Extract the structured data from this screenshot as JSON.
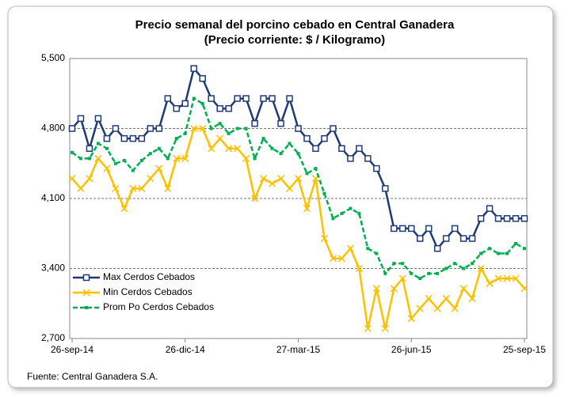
{
  "chart_data": {
    "type": "line",
    "title": "Precio semanal del porcino cebado en Central Ganadera",
    "subtitle": "(Precio corriente: $ / Kilogramo)",
    "source": "Fuente: Central Ganadera S.A.",
    "categories": [
      "26-sep-14",
      null,
      null,
      null,
      null,
      null,
      null,
      null,
      null,
      null,
      null,
      null,
      null,
      "26-dic-14",
      null,
      null,
      null,
      null,
      null,
      null,
      null,
      null,
      null,
      null,
      null,
      null,
      "27-mar-15",
      null,
      null,
      null,
      null,
      null,
      null,
      null,
      null,
      null,
      null,
      null,
      null,
      "26-jun-15",
      null,
      null,
      null,
      null,
      null,
      null,
      null,
      null,
      null,
      null,
      null,
      null,
      "25-sep-15"
    ],
    "series": [
      {
        "name": "Max Cerdos Cebados",
        "color": "#1f3a7a",
        "marker": "square",
        "dashed": false,
        "values": [
          4800,
          4900,
          4600,
          4900,
          4700,
          4800,
          4700,
          4700,
          4700,
          4800,
          4800,
          5100,
          5000,
          5050,
          5400,
          5300,
          5100,
          5000,
          5000,
          5100,
          5100,
          4850,
          5100,
          5100,
          4850,
          5100,
          4800,
          4700,
          4600,
          4700,
          4800,
          4600,
          4500,
          4600,
          4500,
          4400,
          4200,
          3800,
          3800,
          3800,
          3700,
          3800,
          3600,
          3700,
          3800,
          3700,
          3700,
          3900,
          4000,
          3900,
          3900,
          3900,
          3900
        ]
      },
      {
        "name": "Min Cerdos Cebados",
        "color": "#ffc000",
        "marker": "x",
        "dashed": false,
        "values": [
          4300,
          4200,
          4300,
          4500,
          4400,
          4200,
          4000,
          4200,
          4200,
          4300,
          4400,
          4200,
          4500,
          4500,
          4800,
          4800,
          4600,
          4700,
          4600,
          4600,
          4500,
          4100,
          4300,
          4250,
          4300,
          4200,
          4300,
          4000,
          4300,
          3700,
          3500,
          3500,
          3600,
          3400,
          2800,
          3200,
          2800,
          3200,
          3300,
          2900,
          3000,
          3100,
          3000,
          3100,
          3000,
          3200,
          3100,
          3400,
          3250,
          3300,
          3300,
          3300,
          3200
        ]
      },
      {
        "name": "Prom Po Cerdos Cebados",
        "color": "#00b050",
        "marker": "dot",
        "dashed": true,
        "values": [
          4560,
          4500,
          4500,
          4650,
          4600,
          4450,
          4480,
          4380,
          4480,
          4550,
          4600,
          4500,
          4700,
          4750,
          5100,
          5050,
          4800,
          4850,
          4750,
          4800,
          4800,
          4500,
          4700,
          4600,
          4550,
          4650,
          4550,
          4350,
          4400,
          4150,
          3900,
          3950,
          4000,
          3950,
          3600,
          3550,
          3350,
          3450,
          3450,
          3350,
          3300,
          3350,
          3350,
          3400,
          3450,
          3400,
          3450,
          3550,
          3600,
          3550,
          3550,
          3650,
          3600
        ]
      }
    ],
    "ylim": [
      2700,
      5500
    ],
    "yticks": [
      {
        "value": 2700,
        "label": "2,700"
      },
      {
        "value": 3400,
        "label": "3,400"
      },
      {
        "value": 4100,
        "label": "4,100"
      },
      {
        "value": 4800,
        "label": "4,800"
      },
      {
        "value": 5500,
        "label": "5,500"
      }
    ],
    "grid": true,
    "legend": "lower left"
  }
}
